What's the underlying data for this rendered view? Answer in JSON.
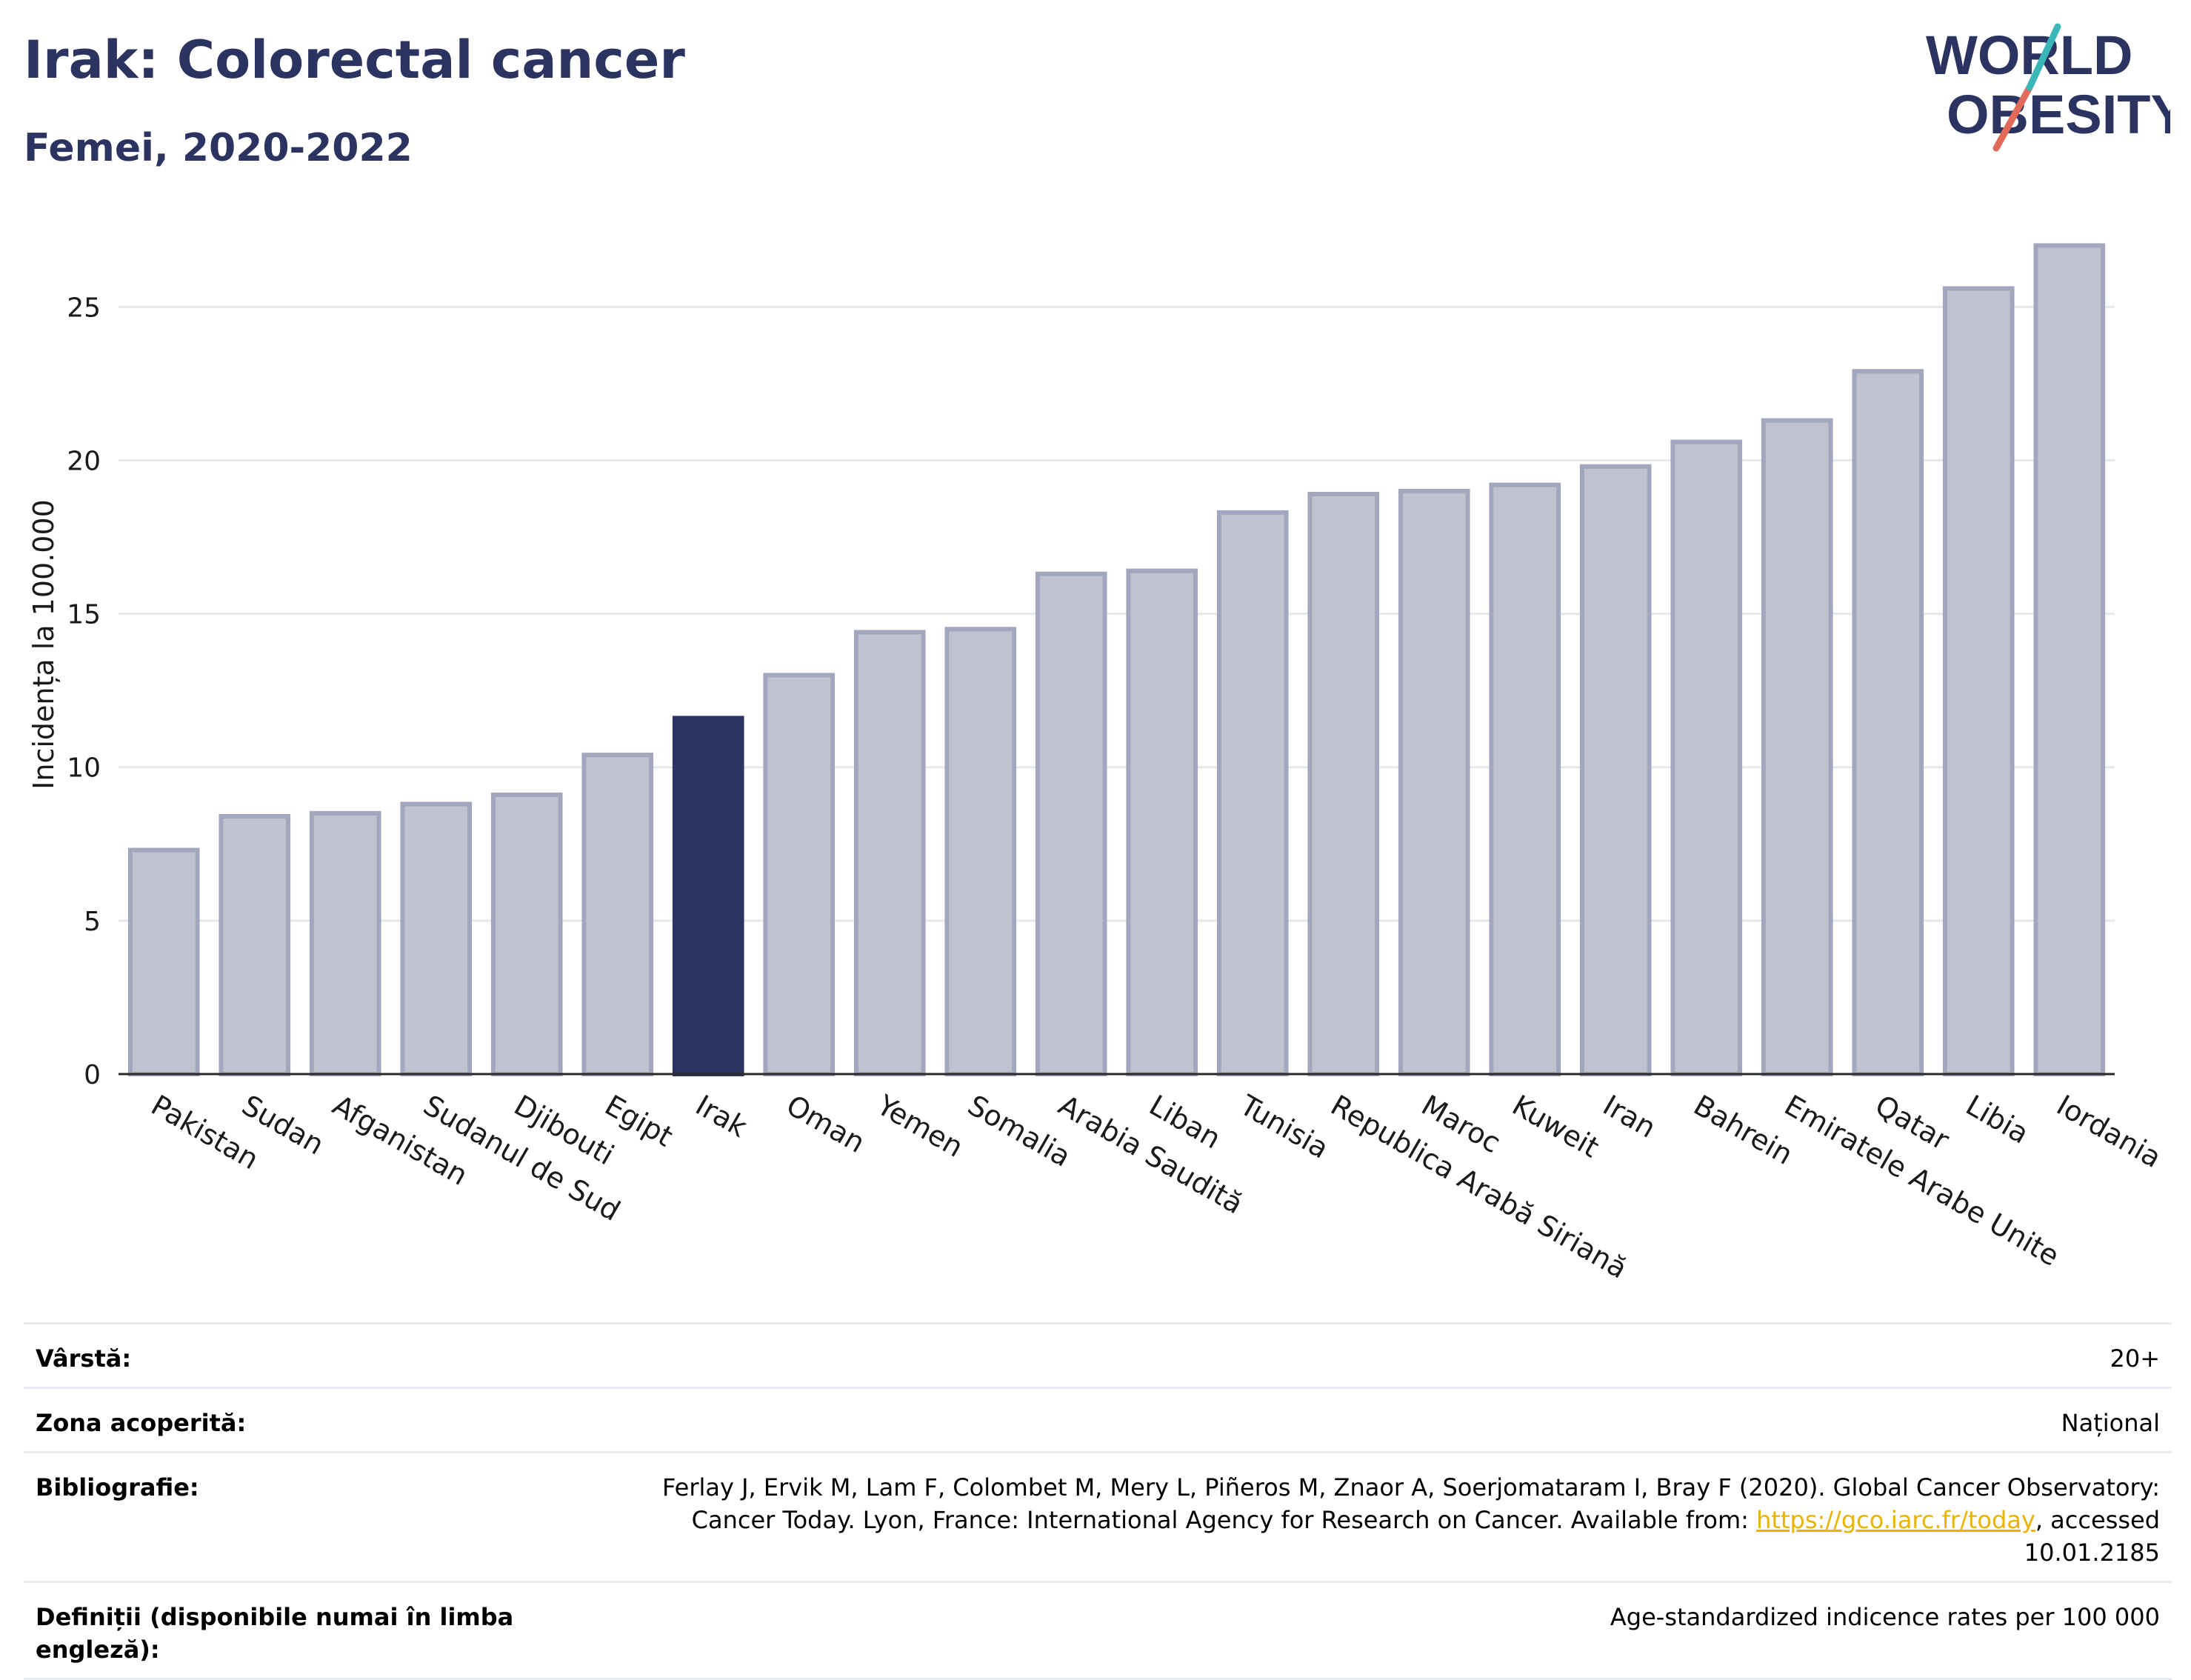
{
  "header": {
    "title": "Irak: Colorectal cancer",
    "subtitle": "Femei, 2020-2022"
  },
  "logo": {
    "line1": "WORLD",
    "line2": "OBESITY"
  },
  "colors": {
    "highlight": "#2b3461",
    "bar": "#bfc2cf",
    "bar_border": "#a2a7bd",
    "grid": "#e6e8ee",
    "link": "#e8b400"
  },
  "chart_data": {
    "type": "bar",
    "ylabel": "Incidența la 100.000",
    "xlabel": "",
    "ylim": [
      0,
      28
    ],
    "yticks": [
      0,
      5,
      10,
      15,
      20,
      25
    ],
    "highlight": "Irak",
    "categories": [
      "Pakistan",
      "Sudan",
      "Afganistan",
      "Sudanul de Sud",
      "Djibouti",
      "Egipt",
      "Irak",
      "Oman",
      "Yemen",
      "Somalia",
      "Arabia Saudită",
      "Liban",
      "Tunisia",
      "Republica Arabă Siriană",
      "Maroc",
      "Kuweit",
      "Iran",
      "Bahrein",
      "Emiratele Arabe Unite",
      "Qatar",
      "Libia",
      "Iordania"
    ],
    "values": [
      7.3,
      8.4,
      8.5,
      8.8,
      9.1,
      10.4,
      11.6,
      13.0,
      14.4,
      14.5,
      16.3,
      16.4,
      18.3,
      18.9,
      19.0,
      19.2,
      19.8,
      20.6,
      21.3,
      22.9,
      25.6,
      27.0
    ],
    "grid": true,
    "legend": "none"
  },
  "meta": {
    "age_label": "Vârstă:",
    "age_value": "20+",
    "coverage_label": "Zona acoperită:",
    "coverage_value": "Național",
    "bib_label": "Bibliografie:",
    "bib_text_1": "Ferlay J, Ervik M, Lam F, Colombet M, Mery L, Piñeros M, Znaor A, Soerjomataram I, Bray F (2020). Global Cancer Observatory: Cancer Today. Lyon, France: International Agency for Research on Cancer. Available from: ",
    "bib_link": "https://gco.iarc.fr/today",
    "bib_text_2": ", accessed 10.01.2185",
    "def_label": "Definiții (disponibile numai în limba engleză):",
    "def_value": "Age-standardized indicence rates per 100 000"
  }
}
